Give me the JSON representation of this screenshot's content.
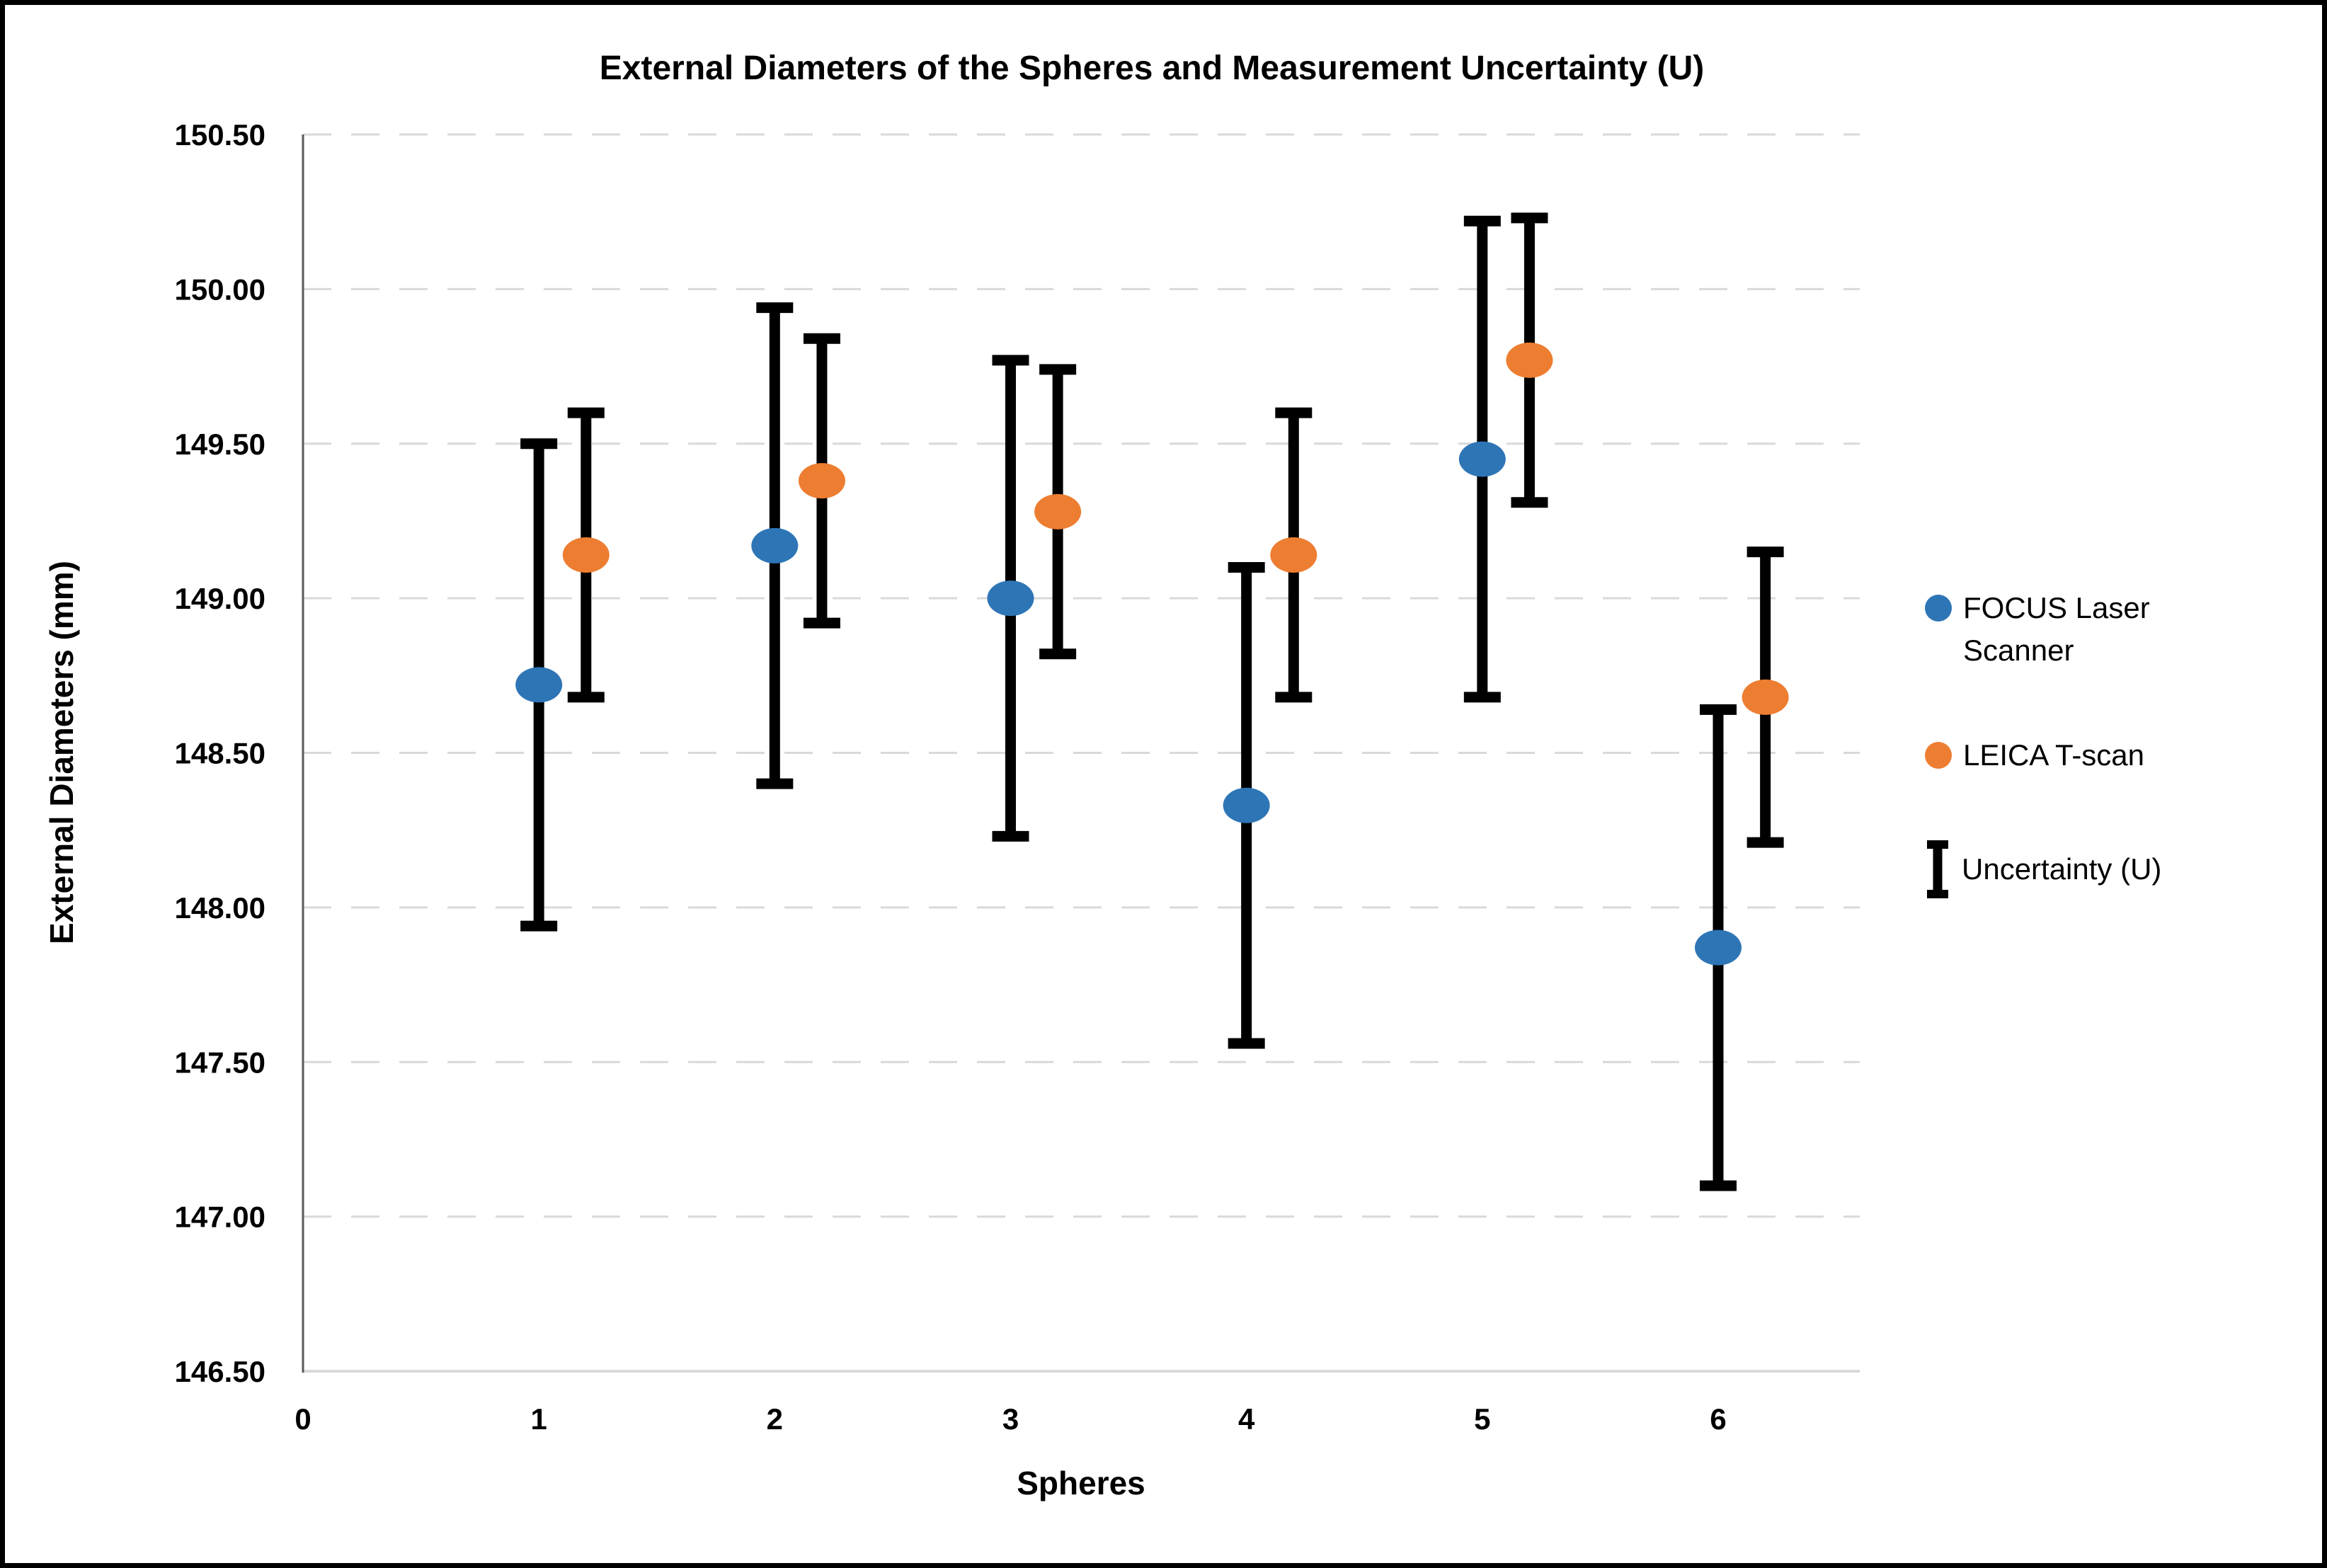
{
  "chart": {
    "title": "External Diameters of the Spheres and Measurement Uncertainty (U)",
    "x_axis_title": "Spheres",
    "y_axis_title": "External Diameters (mm)"
  },
  "legend": {
    "position": "right",
    "items": [
      {
        "label": "FOCUS Laser Scanner",
        "marker": "dot",
        "color": "#2E75B6"
      },
      {
        "label": "LEICA T-scan",
        "marker": "dot",
        "color": "#ED7D31"
      },
      {
        "label": "Uncertainty (U)",
        "marker": "error-bar",
        "color": "#000000"
      }
    ]
  },
  "chart_data": {
    "type": "scatter",
    "title": "External Diameters of the Spheres and Measurement Uncertainty (U)",
    "xlabel": "Spheres",
    "ylabel": "External Diameters (mm)",
    "xlim": [
      0,
      6.6
    ],
    "ylim": [
      146.5,
      150.5
    ],
    "x_ticks": [
      0,
      1,
      2,
      3,
      4,
      5,
      6
    ],
    "y_ticks": [
      146.5,
      147.0,
      147.5,
      148.0,
      148.5,
      149.0,
      149.5,
      150.0,
      150.5
    ],
    "y_tick_decimals": 2,
    "grid": "horizontal-dashed",
    "gridline_color": "#D9D9D9",
    "axis_line_color_left": "#595959",
    "axis_line_color_bottom": "#D9D9D9",
    "error_bar_color": "#000000",
    "legend_position": "right",
    "series": [
      {
        "name": "FOCUS Laser Scanner",
        "color": "#2E75B6",
        "x": [
          1,
          2,
          3,
          4,
          5,
          6
        ],
        "y": [
          148.72,
          149.17,
          149.0,
          148.33,
          149.45,
          147.87
        ],
        "uncertainty": [
          0.78,
          0.77,
          0.77,
          0.77,
          0.77,
          0.77
        ]
      },
      {
        "name": "LEICA T-scan",
        "color": "#ED7D31",
        "x": [
          1.2,
          2.2,
          3.2,
          4.2,
          5.2,
          6.2
        ],
        "y": [
          149.14,
          149.38,
          149.28,
          149.14,
          149.77,
          148.68
        ],
        "uncertainty": [
          0.46,
          0.46,
          0.46,
          0.46,
          0.46,
          0.47
        ]
      }
    ]
  }
}
